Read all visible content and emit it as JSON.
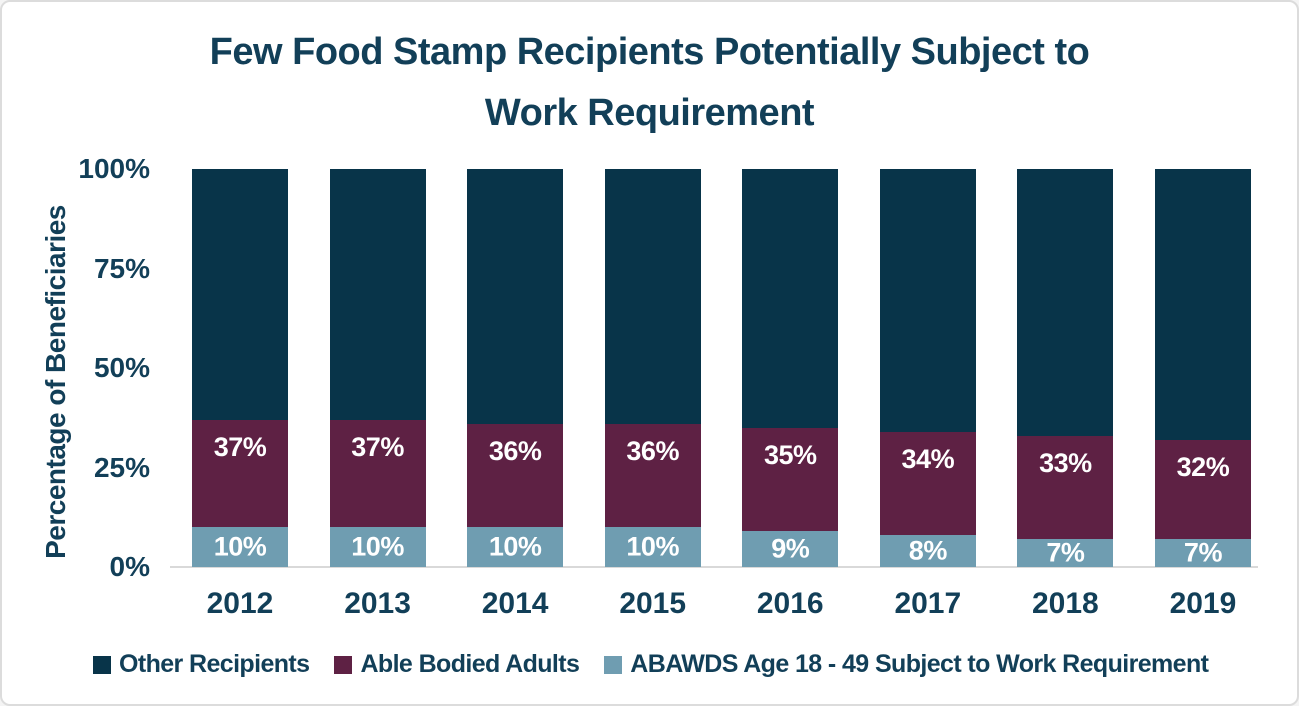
{
  "title_lines": [
    "Few Food Stamp Recipients Potentially Subject to",
    "Work Requirement"
  ],
  "colors": {
    "text": "#123f58",
    "axis_line": "#d9d9d9",
    "bar_label": "#ffffff",
    "background": "#ffffff",
    "frame_border": "#dcdcdc"
  },
  "chart_data": {
    "type": "bar",
    "stacked": true,
    "title": "Few Food Stamp Recipients Potentially Subject to Work Requirement",
    "xlabel": "",
    "ylabel": "Percentage of Beneficiaries",
    "ylim": [
      0,
      100
    ],
    "yticks": [
      "100%",
      "75%",
      "50%",
      "25%",
      "0%"
    ],
    "grid": false,
    "legend_position": "bottom",
    "categories": [
      "2012",
      "2013",
      "2014",
      "2015",
      "2016",
      "2017",
      "2018",
      "2019"
    ],
    "series": [
      {
        "key": "other-recipients",
        "name": "Other Recipients",
        "color": "#083449",
        "segment_heights": [
          63,
          63,
          64,
          64,
          65,
          66,
          67,
          68
        ]
      },
      {
        "key": "able-bodied-adults",
        "name": "Able Bodied Adults",
        "color": "#5e2144",
        "values": [
          37,
          37,
          36,
          36,
          35,
          34,
          33,
          32
        ],
        "data_labels": [
          "37%",
          "37%",
          "36%",
          "36%",
          "35%",
          "34%",
          "33%",
          "32%"
        ],
        "label_position": "near-top",
        "segment_heights": [
          27,
          27,
          26,
          26,
          26,
          26,
          26,
          25
        ]
      },
      {
        "key": "abawds-subject-to-work-requirement",
        "name": "ABAWDS Age 18 - 49 Subject to Work Requirement",
        "color": "#6f9db1",
        "values": [
          10,
          10,
          10,
          10,
          9,
          8,
          7,
          7
        ],
        "data_labels": [
          "10%",
          "10%",
          "10%",
          "10%",
          "9%",
          "8%",
          "7%",
          "7%"
        ],
        "label_position": "centered",
        "segment_heights": [
          10,
          10,
          10,
          10,
          9,
          8,
          7,
          7
        ]
      }
    ]
  }
}
